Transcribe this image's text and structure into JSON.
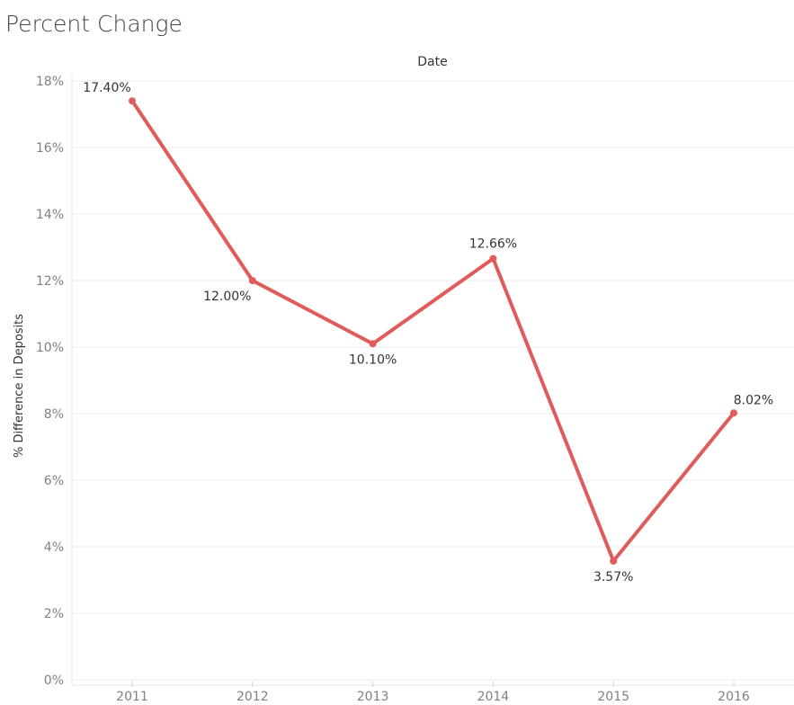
{
  "title": "Percent Change",
  "chart_data": {
    "type": "line",
    "title": "Percent Change",
    "xlabel": "Date",
    "ylabel": "% Difference in Deposits",
    "x": [
      "2011",
      "2012",
      "2013",
      "2014",
      "2015",
      "2016"
    ],
    "y_ticks": [
      "0%",
      "2%",
      "4%",
      "6%",
      "8%",
      "10%",
      "12%",
      "14%",
      "16%",
      "18%"
    ],
    "ylim": [
      0,
      18
    ],
    "series": [
      {
        "values": [
          17.4,
          12.0,
          10.1,
          12.66,
          3.57,
          8.02
        ],
        "labels": [
          "17.40%",
          "12.00%",
          "10.10%",
          "12.66%",
          "3.57%",
          "8.02%"
        ],
        "color": "#e05b5b"
      }
    ],
    "grid": true,
    "legend": "none"
  }
}
